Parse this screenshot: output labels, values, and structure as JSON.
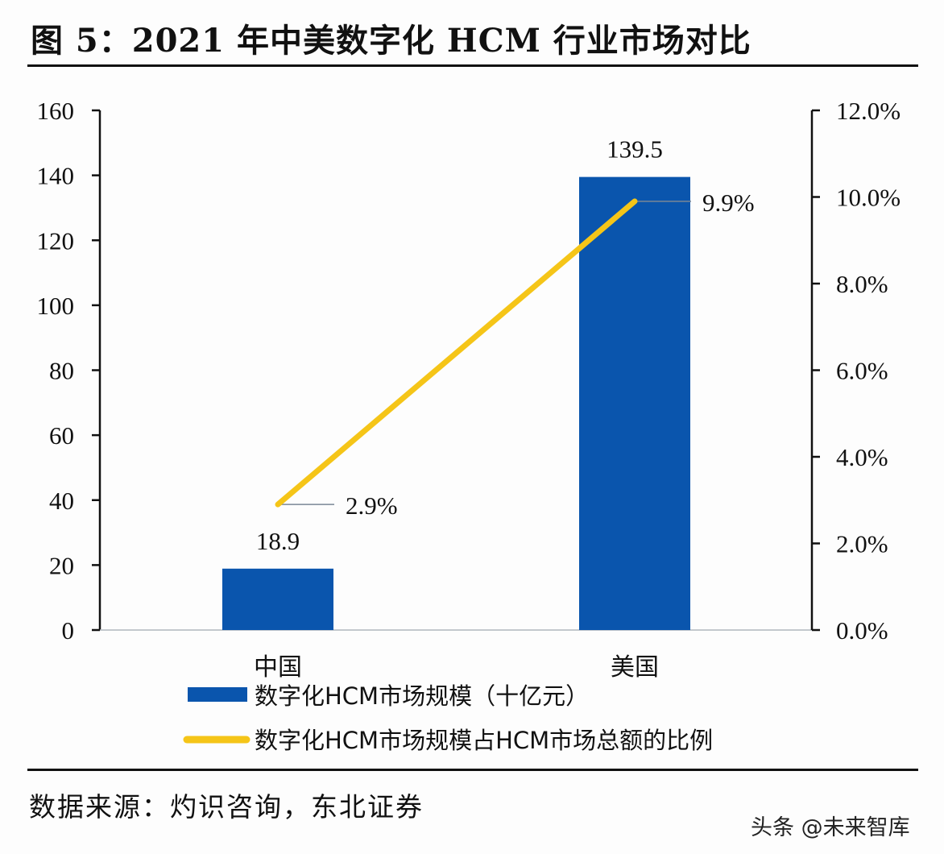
{
  "header": {
    "title": "图 5：2021 年中美数字化 HCM 行业市场对比"
  },
  "footer": {
    "source": "数据来源：灼识咨询，东北证券",
    "watermark": "头条 @未来智库"
  },
  "colors": {
    "bar": "#0a55ad",
    "line": "#f5c518",
    "axis": "#111111",
    "leader": "#7a8796"
  },
  "chart_data": {
    "type": "bar",
    "title": "2021 年中美数字化 HCM 行业市场对比",
    "categories": [
      "中国",
      "美国"
    ],
    "series": [
      {
        "name": "数字化HCM市场规模（十亿元）",
        "type": "bar",
        "axis": "left",
        "values": [
          18.9,
          139.5
        ],
        "labels": [
          "18.9",
          "139.5"
        ]
      },
      {
        "name": "数字化HCM市场规模占HCM市场总额的比例",
        "type": "line",
        "axis": "right",
        "values": [
          2.9,
          9.9
        ],
        "labels": [
          "2.9%",
          "9.9%"
        ]
      }
    ],
    "y_left": {
      "min": 0,
      "max": 160,
      "step": 20,
      "ticks": [
        "0",
        "20",
        "40",
        "60",
        "80",
        "100",
        "120",
        "140",
        "160"
      ]
    },
    "y_right": {
      "min": 0,
      "max": 12,
      "step": 2,
      "ticks": [
        "0.0%",
        "2.0%",
        "4.0%",
        "6.0%",
        "8.0%",
        "10.0%",
        "12.0%"
      ]
    },
    "xlabel": "",
    "ylabel": "",
    "grid": false,
    "legend_position": "bottom"
  }
}
